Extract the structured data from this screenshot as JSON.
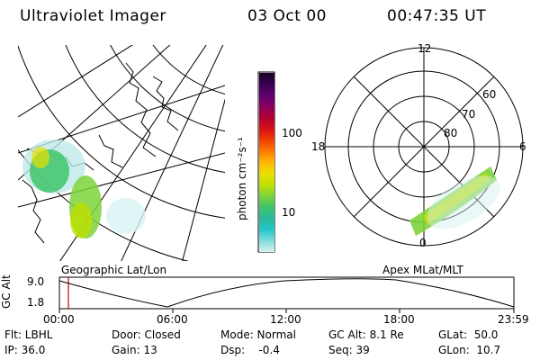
{
  "header": {
    "instrument": "Ultraviolet Imager",
    "date": "03 Oct 00",
    "time": "00:47:35 UT"
  },
  "colorbar": {
    "unit_label": "photon cm⁻²s⁻¹",
    "tick_labels": [
      "100",
      "10"
    ],
    "colors": [
      "#1b0024",
      "#3a0050",
      "#5c0070",
      "#8a0060",
      "#b00030",
      "#d8101a",
      "#f04000",
      "#ff7a00",
      "#ffb800",
      "#e8e000",
      "#bfe000",
      "#7dd33a",
      "#3fc46a",
      "#2ab99e",
      "#22c7c7",
      "#7fdddd",
      "#d8f2f2"
    ]
  },
  "left_panel": {
    "caption": "Geographic Lat/Lon"
  },
  "right_panel": {
    "caption": "Apex MLat/MLT",
    "mlt_labels": {
      "top": "12",
      "left": "18",
      "right": "6",
      "bottom": "0"
    },
    "lat_labels": [
      "60",
      "70",
      "80"
    ]
  },
  "altitude_plot": {
    "axis_label": "GC Alt",
    "y_ticks": [
      "9.0",
      "1.8"
    ],
    "x_ticks": [
      "00:00",
      "06:00",
      "12:00",
      "18:00",
      "23:59"
    ],
    "marker_color": "#cc0000"
  },
  "info": {
    "filter": "Flt: LBHL",
    "ip": "IP: 36.0",
    "door": "Door: Closed",
    "gain": "Gain: 13",
    "mode": "Mode: Normal",
    "dsp": "Dsp:    -0.4",
    "gc_alt": "GC Alt: 8.1 Re",
    "seq": "Seq: 39",
    "glat": "GLat:  50.0",
    "glon": "GLon:  10.7"
  }
}
